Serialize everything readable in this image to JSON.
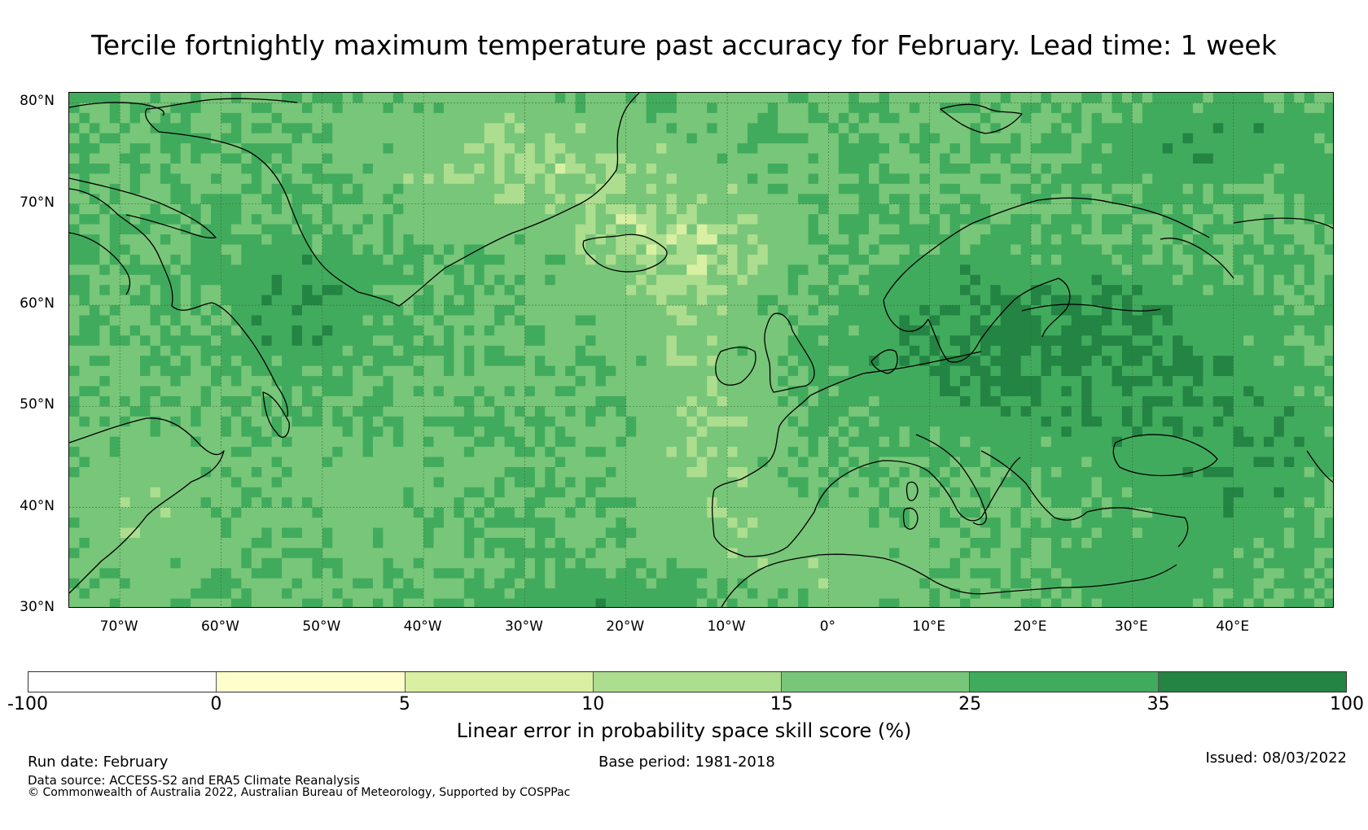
{
  "title": "Tercile fortnightly maximum temperature past accuracy for February. Lead time: 1 week",
  "map": {
    "lon_range": [
      -75,
      50
    ],
    "lat_range": [
      30,
      81
    ],
    "lat_labels": [
      "80°N",
      "70°N",
      "60°N",
      "50°N",
      "40°N",
      "30°N"
    ],
    "lat_values": [
      80,
      70,
      60,
      50,
      40,
      30
    ],
    "lon_labels": [
      "70°W",
      "60°W",
      "50°W",
      "40°W",
      "30°W",
      "20°W",
      "10°W",
      "0°",
      "10°E",
      "20°E",
      "30°E",
      "40°E"
    ],
    "lon_values": [
      -70,
      -60,
      -50,
      -40,
      -30,
      -20,
      -10,
      0,
      10,
      20,
      30,
      40
    ],
    "coastline_color": "#000000",
    "grid_color": "#3a6b3a"
  },
  "colorbar": {
    "ticks": [
      "-100",
      "0",
      "5",
      "10",
      "15",
      "25",
      "35",
      "100"
    ],
    "colors": [
      "#ffffff",
      "#ffffcc",
      "#d9f0a3",
      "#addd8e",
      "#78c679",
      "#41ab5d",
      "#238443"
    ],
    "label": "Linear error in probability space skill score (%)"
  },
  "footer": {
    "run_date": "Run date: February",
    "base_period": "Base period: 1981-2018",
    "issued": "Issued: 08/03/2022",
    "data_source": "Data source: ACCESS-S2 and ERA5 Climate Reanalysis",
    "copyright": "© Commonwealth of Australia 2022, Australian Bureau of Meteorology, Supported by COSPPac"
  }
}
